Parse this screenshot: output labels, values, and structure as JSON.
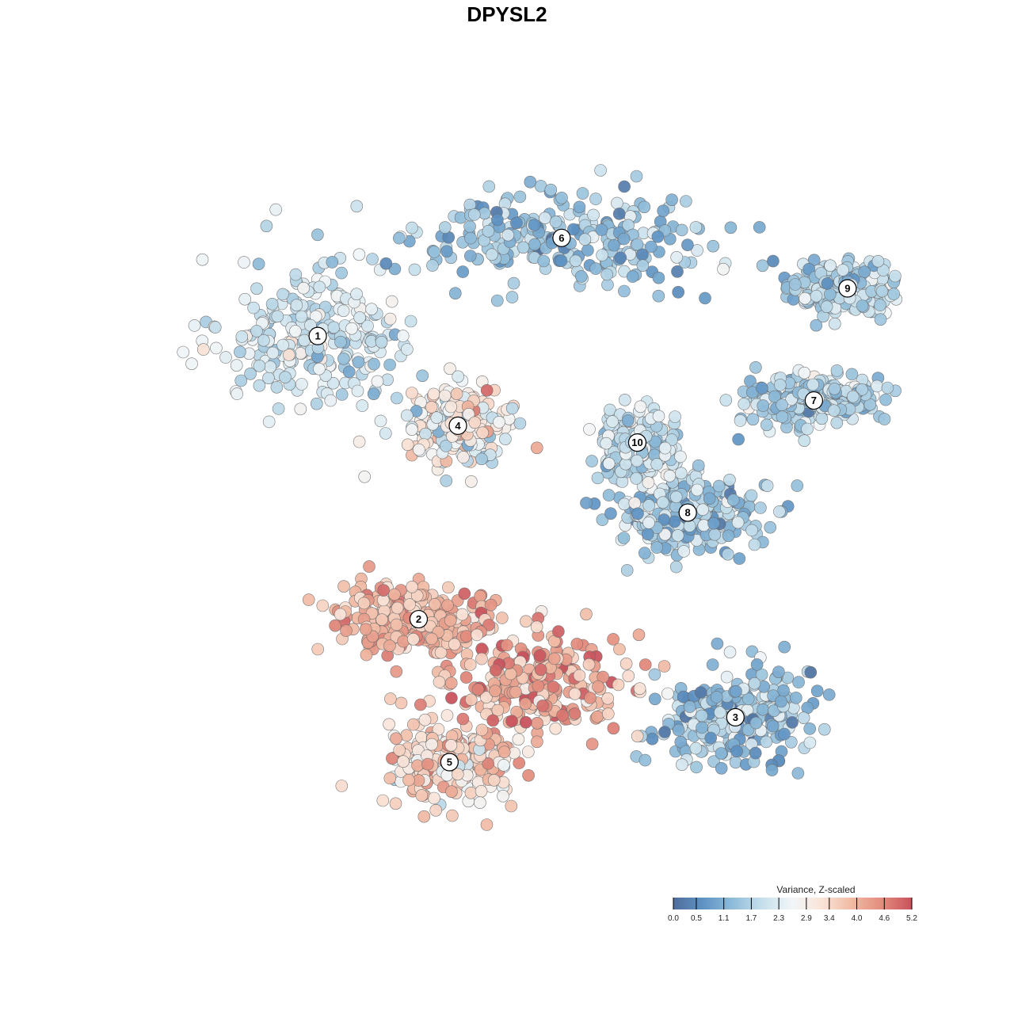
{
  "chart_data": {
    "type": "scatter",
    "title": "DPYSL2",
    "xlabel": "",
    "ylabel": "",
    "axes_visible": false,
    "grid": false,
    "color_scale": {
      "title": "Variance, Z-scaled",
      "ticks": [
        "0.0",
        "0.5",
        "1.1",
        "1.7",
        "2.3",
        "2.9",
        "3.4",
        "4.0",
        "4.6",
        "5.2"
      ],
      "min": 0.0,
      "max": 5.2,
      "colors": [
        "#4f6d9b",
        "#5e93c4",
        "#8fbcd9",
        "#c7e0ec",
        "#f2f6f8",
        "#fae3d7",
        "#f1b9a2",
        "#e38c7d",
        "#c9515c"
      ],
      "placement": "bottom-right"
    },
    "clusters": [
      {
        "label": "1",
        "x": -7.6,
        "y": 7.1,
        "spread": [
          3.4,
          2.8
        ],
        "mean": 2.1,
        "sd": 0.45
      },
      {
        "label": "2",
        "x": -4.0,
        "y": -3.0,
        "spread": [
          2.9,
          1.3
        ],
        "mean": 3.9,
        "sd": 0.45
      },
      {
        "label": "3",
        "x": 7.3,
        "y": -6.5,
        "spread": [
          2.6,
          1.8
        ],
        "mean": 1.4,
        "sd": 0.55
      },
      {
        "label": "4",
        "x": -2.6,
        "y": 3.9,
        "spread": [
          1.7,
          1.3
        ],
        "mean": 2.8,
        "sd": 0.7
      },
      {
        "label": "5",
        "x": -2.9,
        "y": -8.1,
        "spread": [
          2.4,
          1.7
        ],
        "mean": 3.4,
        "sd": 0.7
      },
      {
        "label": "6",
        "x": 1.1,
        "y": 10.6,
        "spread": [
          5.4,
          1.7
        ],
        "mean": 1.4,
        "sd": 0.5
      },
      {
        "label": "7",
        "x": 10.1,
        "y": 4.8,
        "spread": [
          2.4,
          0.9
        ],
        "mean": 1.7,
        "sd": 0.45
      },
      {
        "label": "8",
        "x": 5.6,
        "y": 0.8,
        "spread": [
          2.6,
          1.4
        ],
        "mean": 1.5,
        "sd": 0.6
      },
      {
        "label": "9",
        "x": 11.3,
        "y": 8.8,
        "spread": [
          1.8,
          0.9
        ],
        "mean": 1.7,
        "sd": 0.45
      },
      {
        "label": "10",
        "x": 3.8,
        "y": 3.3,
        "spread": [
          1.2,
          1.1
        ],
        "mean": 2.0,
        "sd": 0.45
      },
      {
        "label": "",
        "x": 0.3,
        "y": -5.3,
        "spread": [
          3.0,
          1.8
        ],
        "mean": 4.1,
        "sd": 0.6
      }
    ],
    "xlim": [
      -13.0,
      13.0
    ],
    "ylim": [
      -12.0,
      14.0
    ]
  }
}
